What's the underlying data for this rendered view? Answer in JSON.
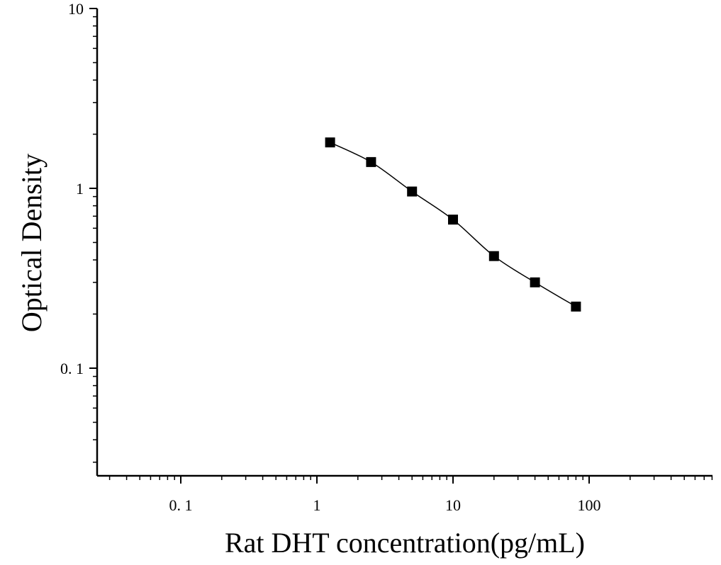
{
  "chart_data": {
    "type": "scatter",
    "title": "",
    "xlabel": "Rat DHT concentration(pg/mL)",
    "ylabel": "Optical Density",
    "xscale": "log",
    "yscale": "log",
    "xlim": [
      0.025,
      800
    ],
    "ylim": [
      0.025,
      10
    ],
    "grid": false,
    "legend": "none",
    "x_ticks": [
      {
        "value": 0.1,
        "label": "0. 1"
      },
      {
        "value": 1,
        "label": "1"
      },
      {
        "value": 10,
        "label": "10"
      },
      {
        "value": 100,
        "label": "100"
      }
    ],
    "y_ticks": [
      {
        "value": 0.1,
        "label": "0. 1"
      },
      {
        "value": 1,
        "label": "1"
      },
      {
        "value": 10,
        "label": "10"
      }
    ],
    "series": [
      {
        "marker": "square",
        "color": "#000000",
        "fit_curve": true,
        "x": [
          1.25,
          2.5,
          5,
          10,
          20,
          40,
          80
        ],
        "y": [
          1.8,
          1.4,
          0.96,
          0.67,
          0.42,
          0.3,
          0.22
        ]
      }
    ]
  }
}
